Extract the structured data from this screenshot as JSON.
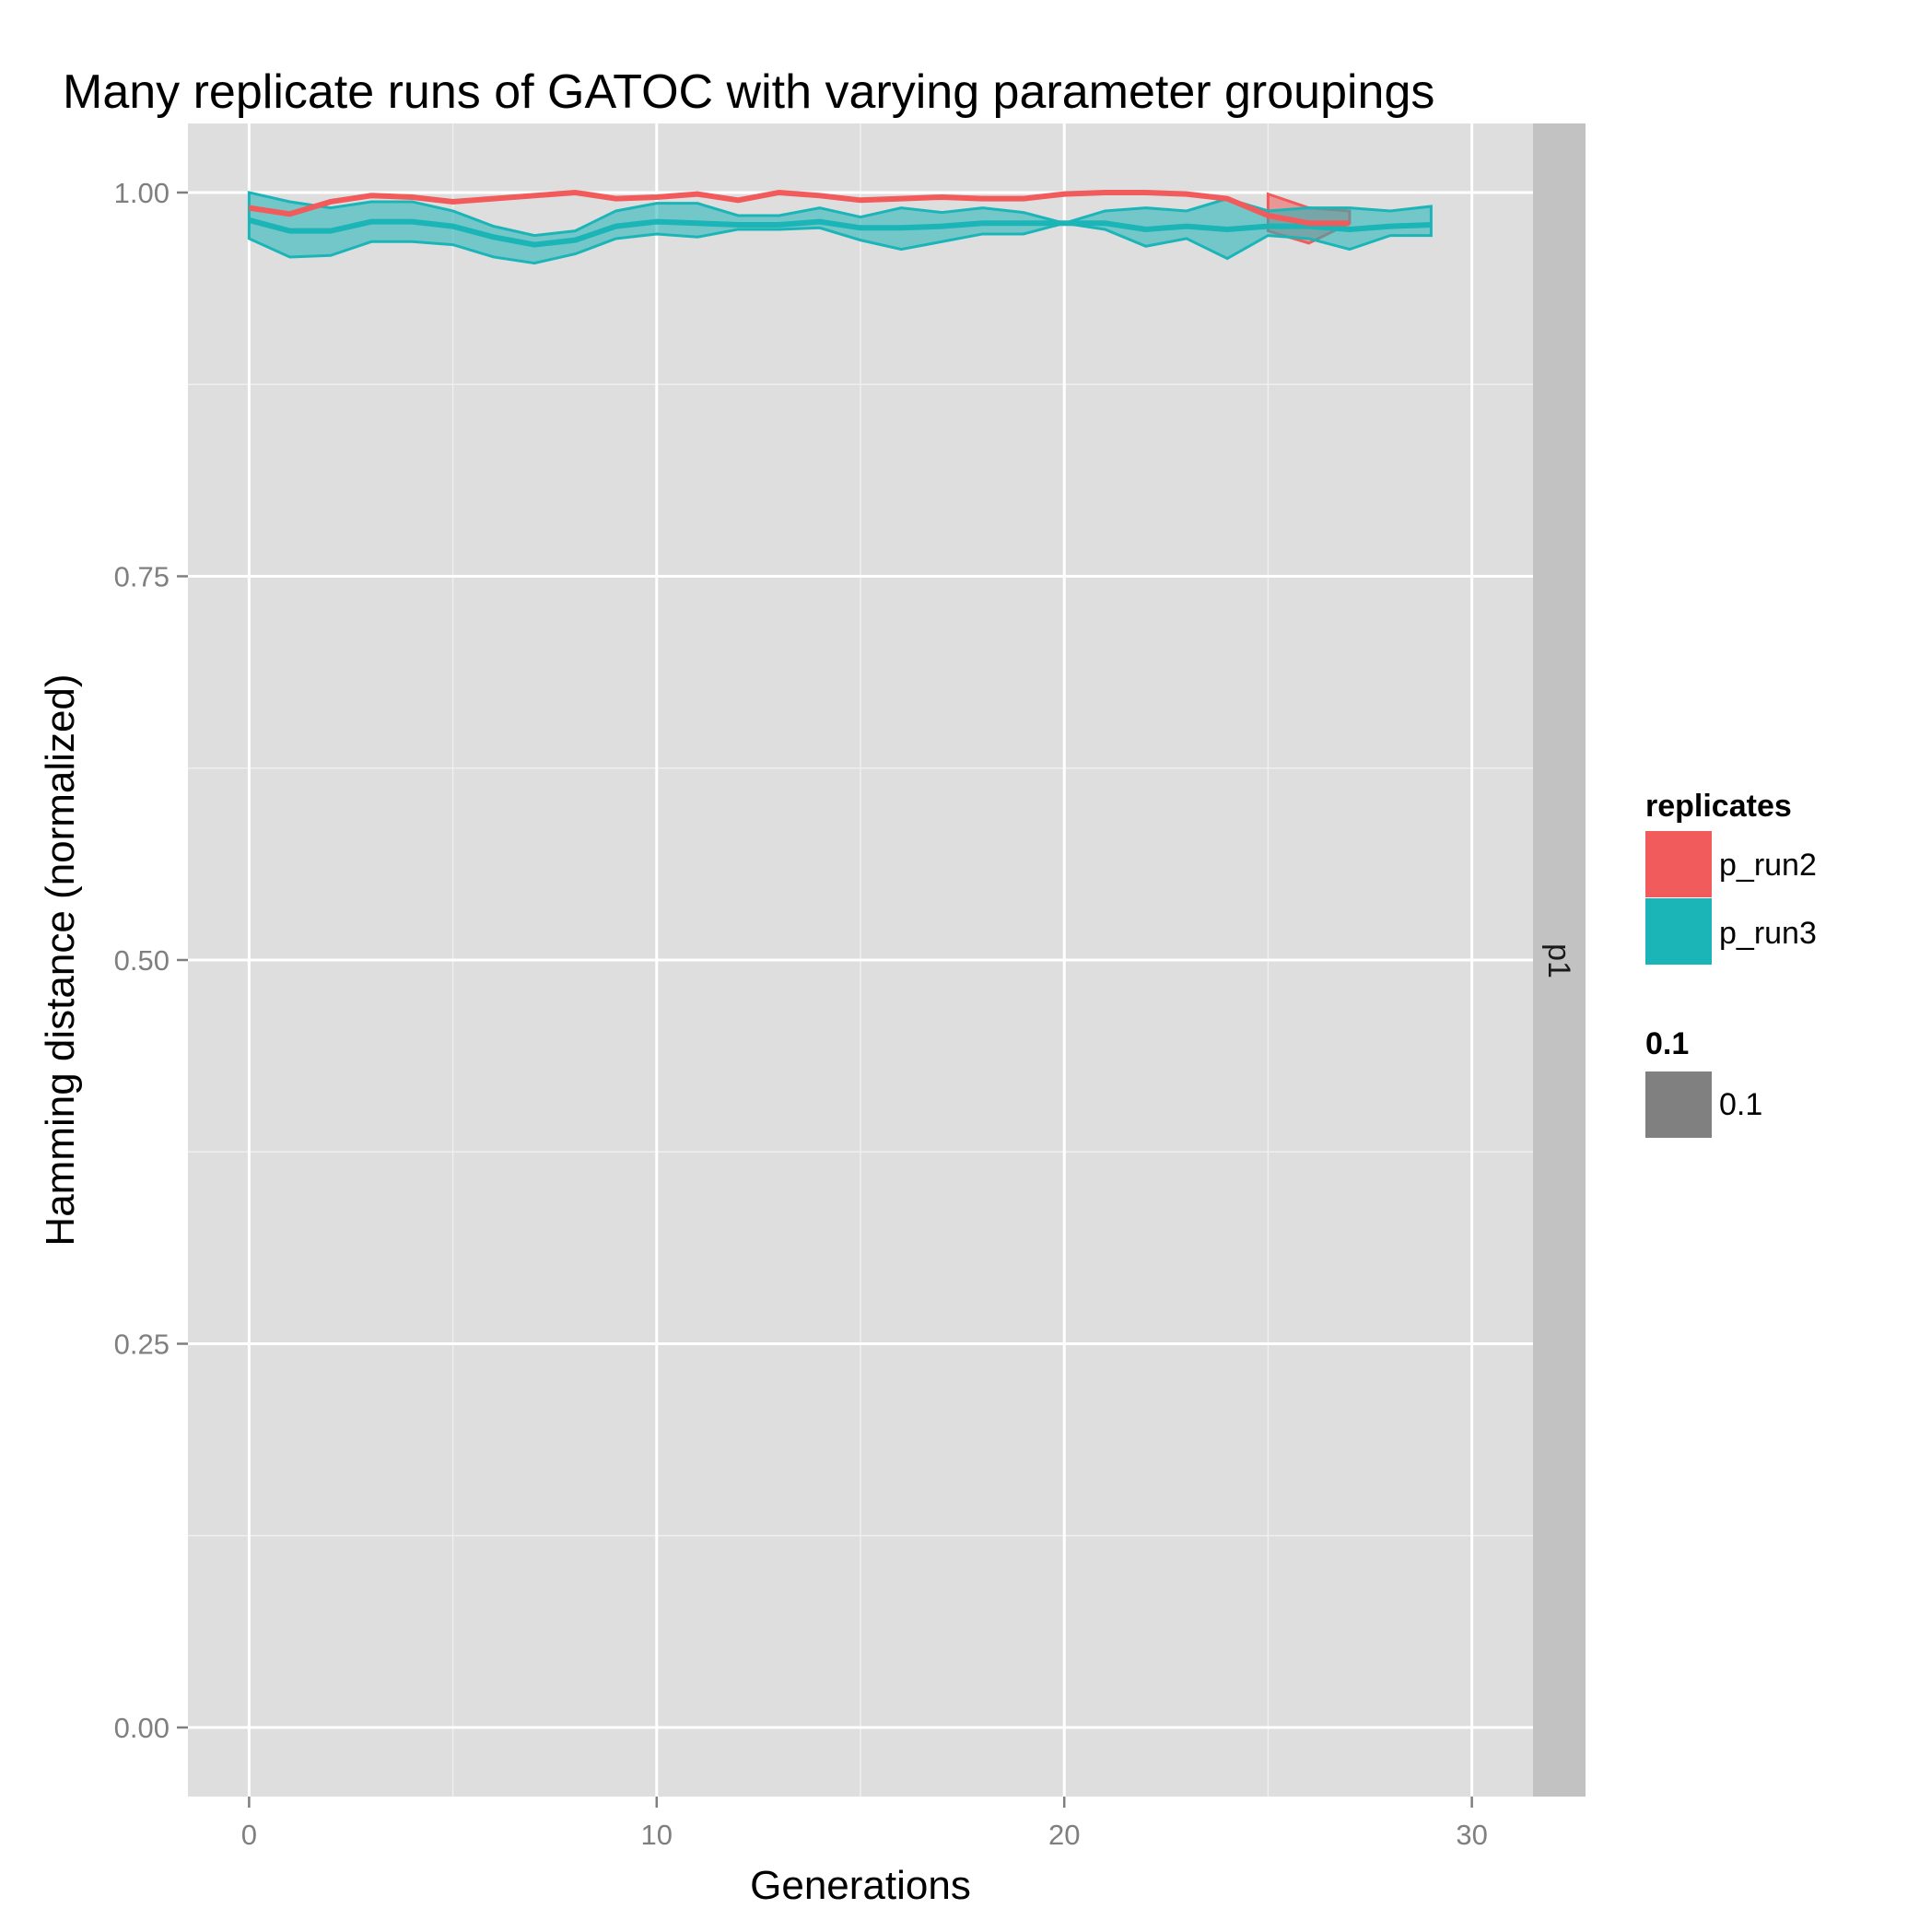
{
  "chart_data": {
    "type": "line",
    "title": "Many replicate runs of GATOC with varying parameter groupings",
    "xlabel": "Generations",
    "ylabel": "Hamming distance (normalized)",
    "xlim": [
      -1.5,
      31.5
    ],
    "ylim": [
      -0.045,
      1.045
    ],
    "x_ticks": [
      0,
      10,
      20,
      30
    ],
    "x_tick_labels": [
      "0",
      "10",
      "20",
      "30"
    ],
    "y_ticks": [
      0,
      0.25,
      0.5,
      0.75,
      1.0
    ],
    "y_tick_labels": [
      "0.00",
      "0.25",
      "0.50",
      "0.75",
      "1.00"
    ],
    "grid": true,
    "facet_strip": "p1",
    "legend_position": "right",
    "colors": {
      "p_run2": "#f25b5b",
      "p_run3": "#1bb5b8",
      "ribbon_fill": "#1bb5b8",
      "panel_bg": "#dedede",
      "strip_bg": "#c2c2c2",
      "grid_major": "#ffffff",
      "legend_alpha_key": "#808080"
    },
    "legend": {
      "replicates_title": "replicates",
      "replicates": [
        {
          "name": "p_run2",
          "color": "#f25b5b"
        },
        {
          "name": "p_run3",
          "color": "#1bb5b8"
        }
      ],
      "alpha_title": "0.1",
      "alpha_items": [
        {
          "name": "0.1",
          "color": "#808080"
        }
      ]
    },
    "series": [
      {
        "name": "p_run2",
        "color": "#f25b5b",
        "x": [
          0,
          1,
          2,
          3,
          4,
          5,
          6,
          7,
          8,
          9,
          10,
          11,
          12,
          13,
          14,
          15,
          16,
          17,
          18,
          19,
          20,
          21,
          22,
          23,
          24,
          25,
          26,
          27
        ],
        "mean": [
          0.99,
          0.986,
          0.994,
          0.998,
          0.997,
          0.994,
          0.996,
          0.998,
          1.0,
          0.996,
          0.997,
          0.999,
          0.995,
          1.0,
          0.998,
          0.995,
          0.996,
          0.997,
          0.996,
          0.996,
          0.999,
          1.0,
          1.0,
          0.999,
          0.996,
          0.985,
          0.98,
          0.98
        ],
        "lower": [
          null,
          null,
          null,
          null,
          null,
          null,
          null,
          null,
          null,
          null,
          null,
          null,
          null,
          null,
          null,
          null,
          null,
          null,
          null,
          null,
          null,
          null,
          null,
          null,
          null,
          0.975,
          0.967,
          0.98
        ],
        "upper": [
          null,
          null,
          null,
          null,
          null,
          null,
          null,
          null,
          null,
          null,
          null,
          null,
          null,
          null,
          null,
          null,
          null,
          null,
          null,
          null,
          null,
          null,
          null,
          null,
          null,
          0.999,
          0.99,
          0.988
        ]
      },
      {
        "name": "p_run3",
        "color": "#1bb5b8",
        "x": [
          0,
          1,
          2,
          3,
          4,
          5,
          6,
          7,
          8,
          9,
          10,
          11,
          12,
          13,
          14,
          15,
          16,
          17,
          18,
          19,
          20,
          21,
          22,
          23,
          24,
          25,
          26,
          27,
          28,
          29
        ],
        "mean": [
          0.982,
          0.975,
          0.975,
          0.981,
          0.981,
          0.978,
          0.971,
          0.966,
          0.969,
          0.978,
          0.981,
          0.98,
          0.979,
          0.979,
          0.981,
          0.977,
          0.977,
          0.978,
          0.98,
          0.98,
          0.98,
          0.98,
          0.976,
          0.978,
          0.976,
          0.978,
          0.978,
          0.976,
          0.978,
          0.979
        ],
        "lower": [
          0.97,
          0.958,
          0.959,
          0.968,
          0.968,
          0.966,
          0.958,
          0.954,
          0.96,
          0.97,
          0.973,
          0.971,
          0.976,
          0.976,
          0.977,
          0.969,
          0.963,
          0.968,
          0.973,
          0.973,
          0.98,
          0.976,
          0.965,
          0.97,
          0.957,
          0.972,
          0.97,
          0.963,
          0.972,
          0.972
        ],
        "upper": [
          1.0,
          0.994,
          0.99,
          0.994,
          0.994,
          0.988,
          0.978,
          0.972,
          0.975,
          0.988,
          0.993,
          0.993,
          0.985,
          0.985,
          0.99,
          0.984,
          0.99,
          0.987,
          0.99,
          0.987,
          0.98,
          0.988,
          0.99,
          0.988,
          0.996,
          0.988,
          0.99,
          0.99,
          0.988,
          0.991
        ]
      }
    ]
  }
}
